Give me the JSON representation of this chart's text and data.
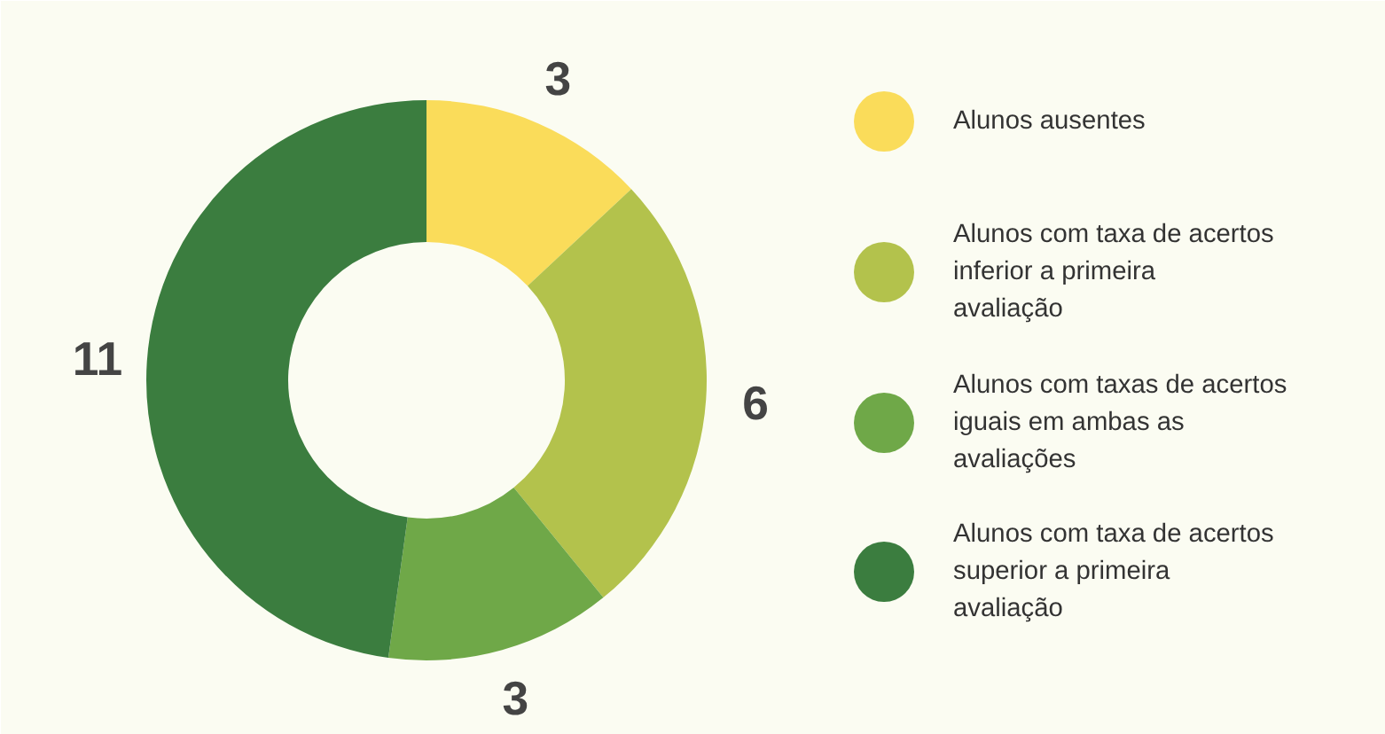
{
  "chart_data": {
    "type": "donut",
    "categories": [
      "Alunos ausentes",
      "Alunos com taxa de acertos inferior a primeira avaliação",
      "Alunos com taxas de acertos iguais em ambas as avaliações",
      "Alunos com taxa de acertos superior a primeira avaliação"
    ],
    "values": [
      3,
      6,
      3,
      11
    ],
    "colors": [
      "#fadc5a",
      "#b3c24c",
      "#6fa848",
      "#3b7d3f"
    ],
    "data_labels": true,
    "legend": "right"
  }
}
